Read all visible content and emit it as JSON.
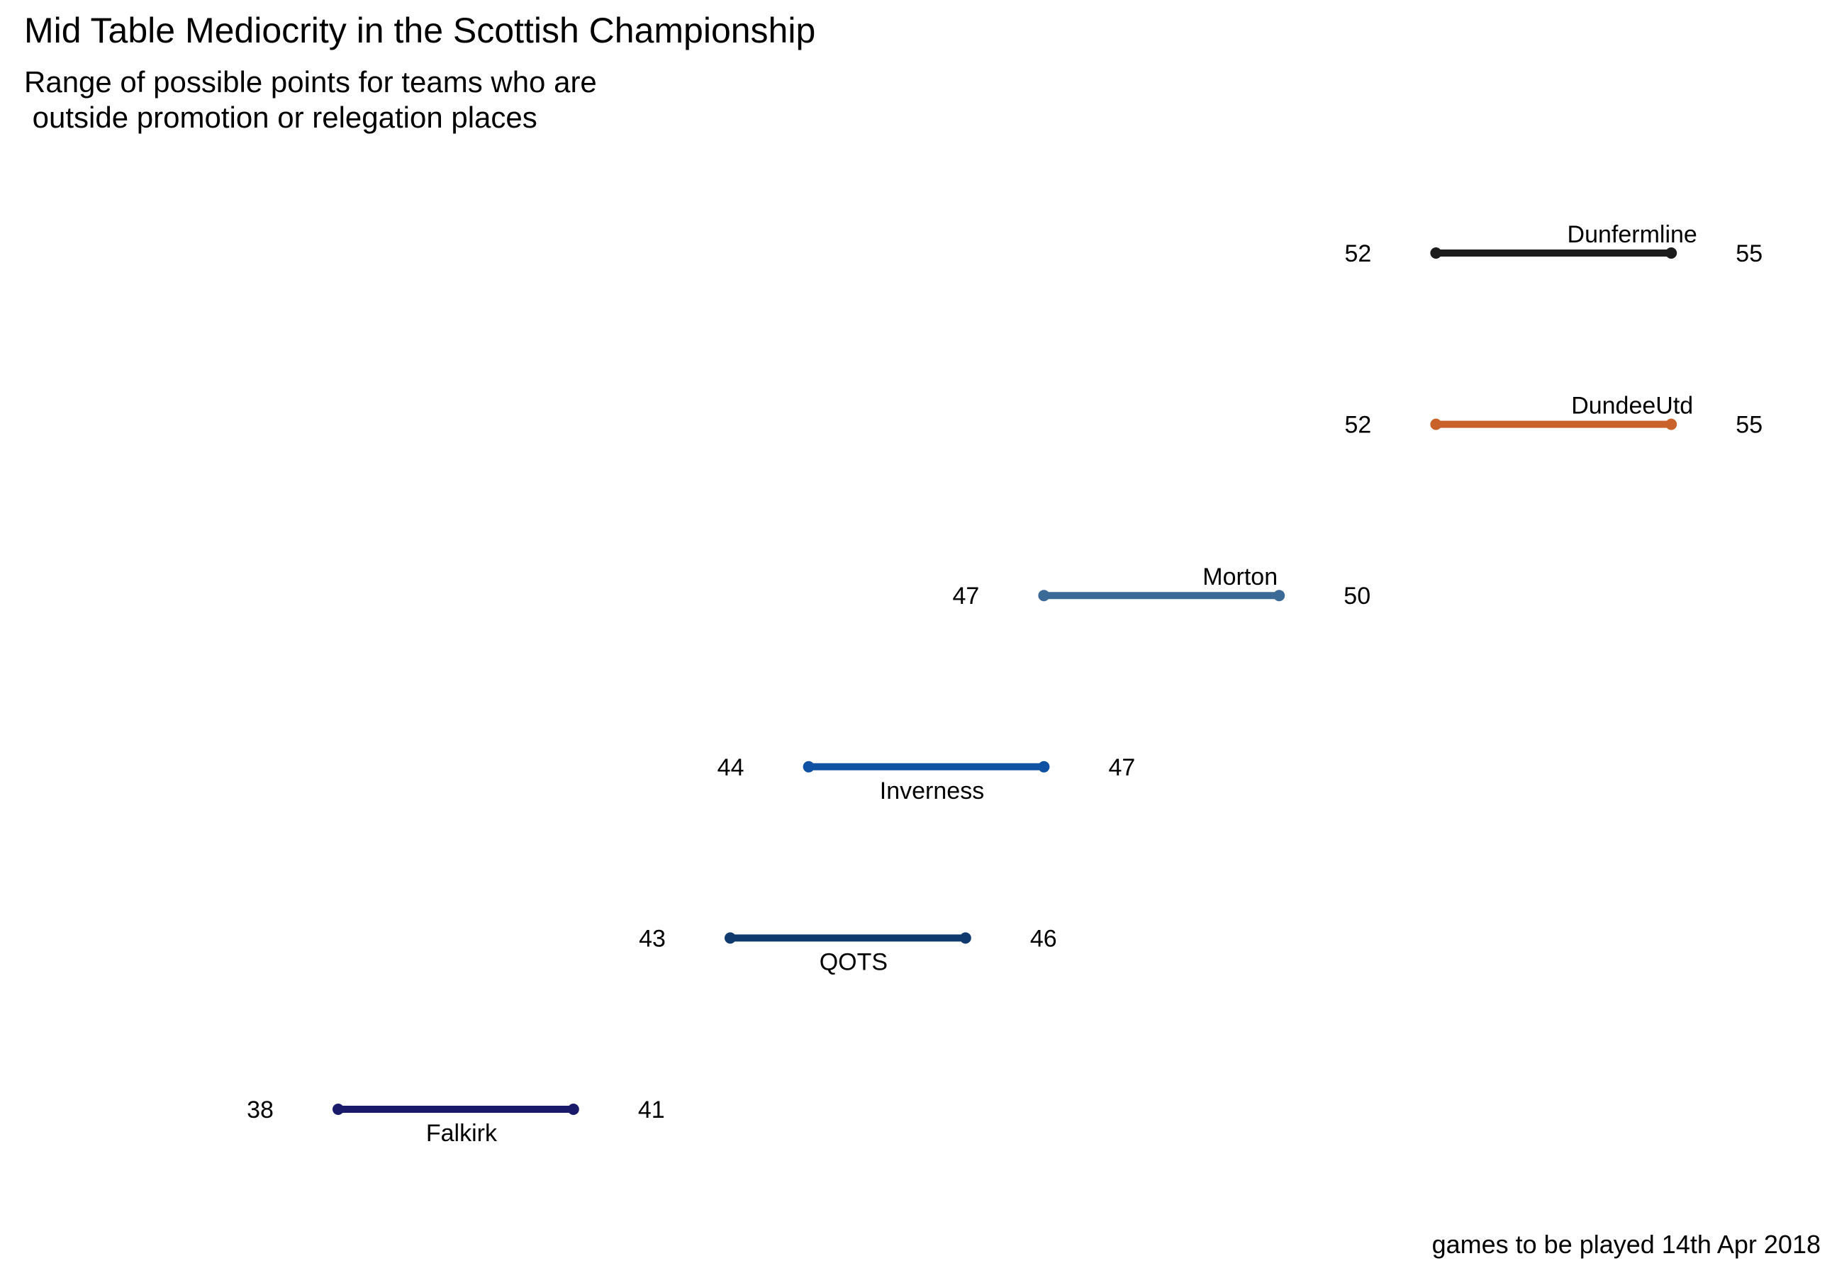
{
  "chart_data": {
    "type": "dumbbell",
    "title": "Mid Table Mediocrity in the Scottish Championship",
    "subtitle_lines": [
      "Range of possible points for teams who are",
      " outside promotion or relegation places"
    ],
    "caption": "games to be played 14th Apr 2018",
    "xlabel": "",
    "ylabel": "",
    "xlim": [
      35,
      58
    ],
    "grid": false,
    "legend": "none",
    "series": [
      {
        "name": "Dunfermline",
        "min": 52,
        "max": 55,
        "color": "#1c1c1c",
        "label_position": "above"
      },
      {
        "name": "DundeeUtd",
        "min": 52,
        "max": 55,
        "color": "#c8612a",
        "label_position": "above"
      },
      {
        "name": "Morton",
        "min": 47,
        "max": 50,
        "color": "#3b6a96",
        "label_position": "above"
      },
      {
        "name": "Inverness",
        "min": 44,
        "max": 47,
        "color": "#0f52a3",
        "label_position": "below"
      },
      {
        "name": "QOTS",
        "min": 43,
        "max": 46,
        "color": "#0f3a6e",
        "label_position": "below"
      },
      {
        "name": "Falkirk",
        "min": 38,
        "max": 41,
        "color": "#1a1a6b",
        "label_position": "below"
      }
    ]
  }
}
